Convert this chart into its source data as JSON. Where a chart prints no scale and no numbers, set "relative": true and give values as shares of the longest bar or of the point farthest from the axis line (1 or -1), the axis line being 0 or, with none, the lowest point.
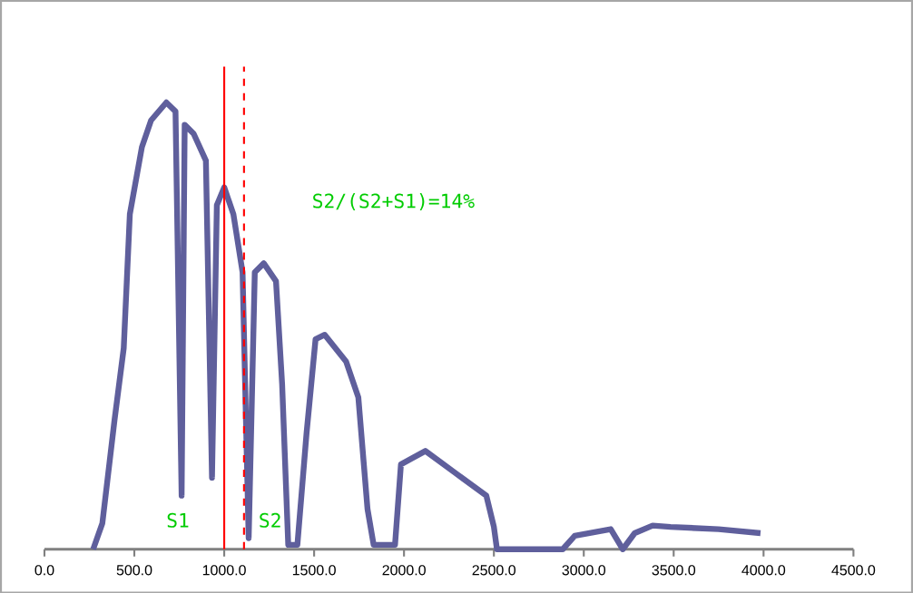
{
  "chart_data": {
    "type": "line",
    "relative": true,
    "color": "#5f5f9c",
    "x": [
      271,
      322,
      390,
      441,
      475,
      542,
      593,
      678,
      729,
      763,
      780,
      830,
      898,
      932,
      959,
      1000,
      1051,
      1102,
      1136,
      1170,
      1220,
      1288,
      1322,
      1356,
      1407,
      1458,
      1508,
      1559,
      1678,
      1746,
      1797,
      1831,
      1950,
      1983,
      2119,
      2288,
      2458,
      2500,
      2517,
      2883,
      2950,
      3150,
      3217,
      3283,
      3383,
      3483,
      3750,
      3983
    ],
    "values": [
      0,
      0.058,
      0.29,
      0.45,
      0.75,
      0.9,
      0.96,
      1.0,
      0.98,
      0.12,
      0.95,
      0.93,
      0.87,
      0.16,
      0.77,
      0.81,
      0.75,
      0.62,
      0.025,
      0.62,
      0.64,
      0.6,
      0.37,
      0.01,
      0.01,
      0.26,
      0.47,
      0.48,
      0.42,
      0.34,
      0.09,
      0.01,
      0.01,
      0.19,
      0.22,
      0.17,
      0.12,
      0.05,
      0,
      0,
      0.03,
      0.045,
      0,
      0.036,
      0.053,
      0.05,
      0.045,
      0.036
    ],
    "xlim": [
      0,
      4500
    ],
    "xticks": [
      {
        "value": 0,
        "label": "0.0"
      },
      {
        "value": 500,
        "label": "500.0"
      },
      {
        "value": 1000,
        "label": "1000.0"
      },
      {
        "value": 1500,
        "label": "1500.0"
      },
      {
        "value": 2000,
        "label": "2000.0"
      },
      {
        "value": 2500,
        "label": "2500.0"
      },
      {
        "value": 3000,
        "label": "3000.0"
      },
      {
        "value": 3500,
        "label": "3500.0"
      },
      {
        "value": 4000,
        "label": "4000.0"
      },
      {
        "value": 4500,
        "label": "4500.0"
      }
    ],
    "ref_lines": [
      {
        "axis": "x",
        "value": 1000,
        "color": "#ff0000",
        "line_style": "solid"
      },
      {
        "axis": "x",
        "value": 1110,
        "color": "#ff0000",
        "line_style": "dashed"
      }
    ],
    "annotations": [
      "S1",
      "S2",
      "S2/(S2+S1)=14%"
    ]
  }
}
